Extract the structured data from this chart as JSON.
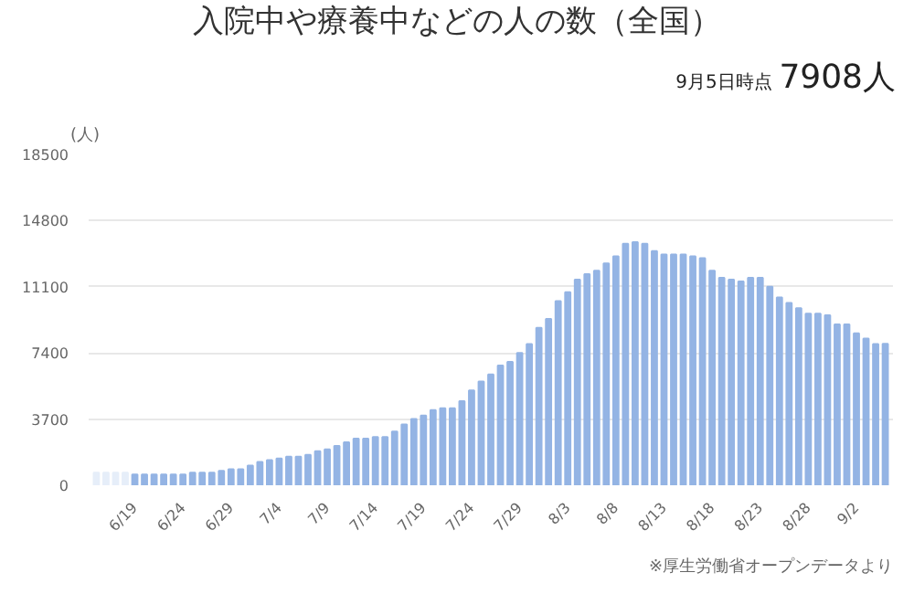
{
  "chart_data": {
    "type": "bar",
    "title": "入院中や療養中などの人の数（全国）",
    "ylabel": "(人)",
    "annotations": [
      "9月5日時点",
      "7908人",
      "※厚生労働省オープンデータより"
    ],
    "categories": [
      null,
      null,
      null,
      null,
      "6/19",
      null,
      null,
      null,
      null,
      "6/24",
      null,
      null,
      null,
      null,
      "6/29",
      null,
      null,
      null,
      null,
      "7/4",
      null,
      null,
      null,
      null,
      "7/9",
      null,
      null,
      null,
      null,
      "7/14",
      null,
      null,
      null,
      null,
      "7/19",
      null,
      null,
      null,
      null,
      "7/24",
      null,
      null,
      null,
      null,
      "7/29",
      null,
      null,
      null,
      null,
      "8/3",
      null,
      null,
      null,
      null,
      "8/8",
      null,
      null,
      null,
      null,
      "8/13",
      null,
      null,
      null,
      null,
      "8/18",
      null,
      null,
      null,
      null,
      "8/23",
      null,
      null,
      null,
      null,
      "8/28",
      null,
      null,
      null,
      null,
      "9/2",
      null,
      null,
      null
    ],
    "values": [
      700,
      700,
      700,
      700,
      600,
      600,
      600,
      600,
      600,
      600,
      700,
      700,
      700,
      800,
      900,
      900,
      1100,
      1300,
      1400,
      1500,
      1600,
      1600,
      1700,
      1900,
      2000,
      2200,
      2400,
      2600,
      2600,
      2700,
      2700,
      3000,
      3400,
      3700,
      3900,
      4200,
      4300,
      4300,
      4700,
      5300,
      5800,
      6200,
      6700,
      6900,
      7400,
      7900,
      8800,
      9300,
      10300,
      10800,
      11500,
      11800,
      12000,
      12400,
      12800,
      13500,
      13600,
      13500,
      13100,
      12900,
      12900,
      12900,
      12800,
      12700,
      12000,
      11600,
      11500,
      11400,
      11600,
      11600,
      11100,
      10500,
      10200,
      9900,
      9600,
      9600,
      9500,
      9000,
      9000,
      8500,
      8200,
      7900,
      7908
    ],
    "colors": [
      "#e6eef9",
      "#e6eef9",
      "#e6eef9",
      "#e6eef9",
      "#94b4e4",
      "#94b4e4",
      "#94b4e4",
      "#94b4e4",
      "#94b4e4",
      "#94b4e4",
      "#94b4e4",
      "#94b4e4",
      "#94b4e4",
      "#94b4e4",
      "#94b4e4",
      "#94b4e4",
      "#94b4e4",
      "#94b4e4",
      "#94b4e4",
      "#94b4e4",
      "#94b4e4",
      "#94b4e4",
      "#94b4e4",
      "#94b4e4",
      "#94b4e4",
      "#94b4e4",
      "#94b4e4",
      "#94b4e4",
      "#94b4e4",
      "#94b4e4",
      "#94b4e4",
      "#94b4e4",
      "#94b4e4",
      "#94b4e4",
      "#94b4e4",
      "#94b4e4",
      "#94b4e4",
      "#94b4e4",
      "#94b4e4",
      "#94b4e4",
      "#94b4e4",
      "#94b4e4",
      "#94b4e4",
      "#94b4e4",
      "#94b4e4",
      "#94b4e4",
      "#94b4e4",
      "#94b4e4",
      "#94b4e4",
      "#94b4e4",
      "#94b4e4",
      "#94b4e4",
      "#94b4e4",
      "#94b4e4",
      "#94b4e4",
      "#94b4e4",
      "#94b4e4",
      "#94b4e4",
      "#94b4e4",
      "#94b4e4",
      "#94b4e4",
      "#94b4e4",
      "#94b4e4",
      "#94b4e4",
      "#94b4e4",
      "#94b4e4",
      "#94b4e4",
      "#94b4e4",
      "#94b4e4",
      "#94b4e4",
      "#94b4e4",
      "#94b4e4",
      "#94b4e4",
      "#94b4e4",
      "#94b4e4",
      "#94b4e4",
      "#94b4e4",
      "#94b4e4",
      "#94b4e4",
      "#94b4e4",
      "#94b4e4",
      "#94b4e4",
      "#94b4e4"
    ],
    "ylim": [
      0,
      18500
    ],
    "yticks": [
      0,
      3700,
      7400,
      11100,
      14800,
      18500
    ],
    "grid": "y"
  }
}
